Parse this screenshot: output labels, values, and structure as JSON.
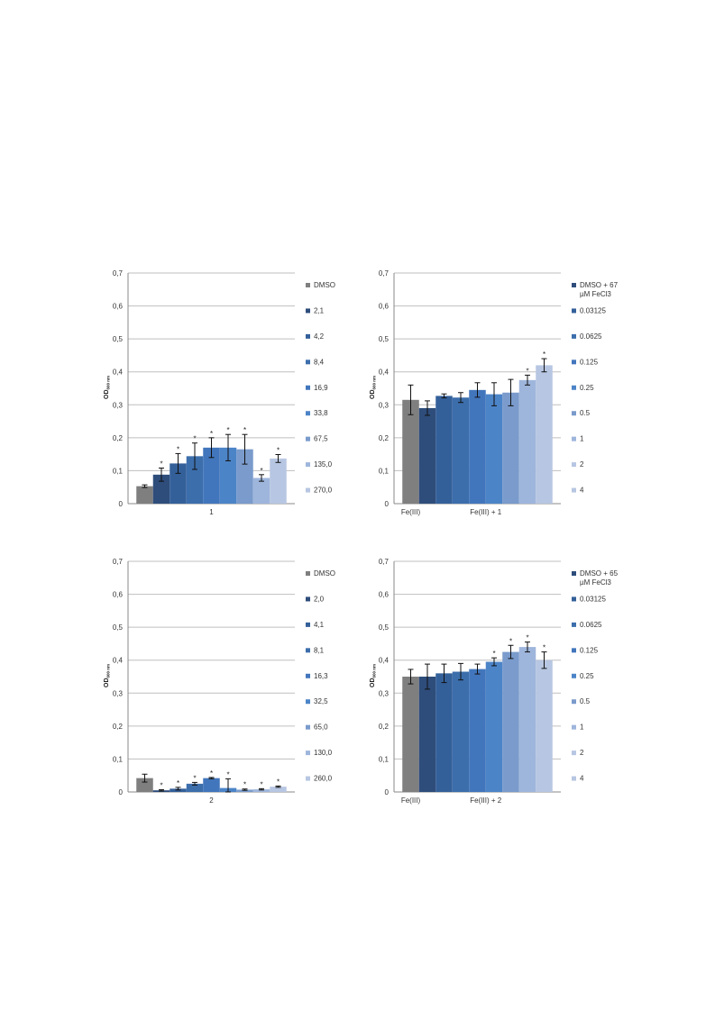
{
  "palette": [
    "#7f7f7f",
    "#2e4d7b",
    "#34609a",
    "#3c6eac",
    "#4276bc",
    "#4c84c8",
    "#7a9bcc",
    "#9fb6dc",
    "#b7c6e2"
  ],
  "chart_data": [
    {
      "type": "bar",
      "id": "p1",
      "ylabel_main": "OD",
      "ylabel_sub": "600 nm",
      "ylim": [
        0,
        0.7
      ],
      "yticks": [
        "0",
        "0,1",
        "0,2",
        "0,3",
        "0,4",
        "0,5",
        "0,6",
        "0,7"
      ],
      "grid": true,
      "legend_position": "right",
      "groups": [
        {
          "label": "1",
          "bars": [
            0,
            1,
            2,
            3,
            4,
            5,
            6,
            7,
            8
          ]
        }
      ],
      "series": [
        {
          "name": "DMSO",
          "value": 0.053,
          "error": 0.004,
          "star": false
        },
        {
          "name": "2,1",
          "value": 0.088,
          "error": 0.02,
          "star": true
        },
        {
          "name": "4,2",
          "value": 0.122,
          "error": 0.03,
          "star": true
        },
        {
          "name": "8,4",
          "value": 0.144,
          "error": 0.04,
          "star": true
        },
        {
          "name": "16,9",
          "value": 0.17,
          "error": 0.03,
          "star": true
        },
        {
          "name": "33,8",
          "value": 0.17,
          "error": 0.04,
          "star": true
        },
        {
          "name": "67,5",
          "value": 0.165,
          "error": 0.045,
          "star": true
        },
        {
          "name": "135,0",
          "value": 0.078,
          "error": 0.01,
          "star": true
        },
        {
          "name": "270,0",
          "value": 0.137,
          "error": 0.012,
          "star": true
        }
      ]
    },
    {
      "type": "bar",
      "id": "p2",
      "ylabel_main": "OD",
      "ylabel_sub": "600 nm",
      "ylim": [
        0,
        0.7
      ],
      "yticks": [
        "0",
        "0,1",
        "0,2",
        "0,3",
        "0,4",
        "0,5",
        "0,6",
        "0,7"
      ],
      "grid": true,
      "legend_position": "right",
      "groups": [
        {
          "label": "Fe(III)",
          "bars": [
            0
          ]
        },
        {
          "label": "Fe(III) + 1",
          "bars": [
            1,
            2,
            3,
            4,
            5,
            6,
            7,
            8,
            9
          ]
        }
      ],
      "series": [
        {
          "name": "",
          "value": 0.315,
          "error": 0.045,
          "star": false
        },
        {
          "name": "DMSO + 67 µM FeCl3",
          "value": 0.29,
          "error": 0.022,
          "star": false
        },
        {
          "name": "0.03125",
          "value": 0.327,
          "error": 0.006,
          "star": false
        },
        {
          "name": "0.0625",
          "value": 0.322,
          "error": 0.015,
          "star": false
        },
        {
          "name": "0.125",
          "value": 0.345,
          "error": 0.022,
          "star": false
        },
        {
          "name": "0.25",
          "value": 0.332,
          "error": 0.035,
          "star": false
        },
        {
          "name": "0.5",
          "value": 0.337,
          "error": 0.04,
          "star": false
        },
        {
          "name": "1",
          "value": 0.375,
          "error": 0.015,
          "star": true
        },
        {
          "name": "2",
          "value": 0.42,
          "error": 0.02,
          "star": true
        },
        {
          "name": "4",
          "value": null,
          "error": null,
          "star": false
        }
      ]
    },
    {
      "type": "bar",
      "id": "p3",
      "ylabel_main": "OD",
      "ylabel_sub": "600 nm",
      "ylim": [
        0,
        0.7
      ],
      "yticks": [
        "0",
        "0,1",
        "0,2",
        "0,3",
        "0,4",
        "0,5",
        "0,6",
        "0,7"
      ],
      "grid": true,
      "legend_position": "right",
      "groups": [
        {
          "label": "2",
          "bars": [
            0,
            1,
            2,
            3,
            4,
            5,
            6,
            7,
            8
          ]
        }
      ],
      "series": [
        {
          "name": "DMSO",
          "value": 0.042,
          "error": 0.012,
          "star": false
        },
        {
          "name": "2,0",
          "value": 0.005,
          "error": 0.002,
          "star": true
        },
        {
          "name": "4,1",
          "value": 0.01,
          "error": 0.004,
          "star": true
        },
        {
          "name": "8,1",
          "value": 0.025,
          "error": 0.004,
          "star": true
        },
        {
          "name": "16,3",
          "value": 0.042,
          "error": 0.002,
          "star": true
        },
        {
          "name": "32,5",
          "value": 0.012,
          "error": 0.028,
          "star": true
        },
        {
          "name": "65,0",
          "value": 0.007,
          "error": 0.002,
          "star": true
        },
        {
          "name": "130,0",
          "value": 0.008,
          "error": 0.002,
          "star": true
        },
        {
          "name": "260,0",
          "value": 0.016,
          "error": 0.002,
          "star": true
        }
      ]
    },
    {
      "type": "bar",
      "id": "p4",
      "ylabel_main": "OD",
      "ylabel_sub": "600 nm",
      "ylim": [
        0,
        0.7
      ],
      "yticks": [
        "0",
        "0,1",
        "0,2",
        "0,3",
        "0,4",
        "0,5",
        "0,6",
        "0,7"
      ],
      "grid": true,
      "legend_position": "right",
      "groups": [
        {
          "label": "Fe(III)",
          "bars": [
            0
          ]
        },
        {
          "label": "Fe(III) + 2",
          "bars": [
            1,
            2,
            3,
            4,
            5,
            6,
            7,
            8,
            9
          ]
        }
      ],
      "series": [
        {
          "name": "",
          "value": 0.35,
          "error": 0.022,
          "star": false
        },
        {
          "name": "DMSO + 65 µM FeCl3",
          "value": 0.35,
          "error": 0.038,
          "star": false
        },
        {
          "name": "0.03125",
          "value": 0.36,
          "error": 0.028,
          "star": false
        },
        {
          "name": "0.0625",
          "value": 0.365,
          "error": 0.025,
          "star": false
        },
        {
          "name": "0.125",
          "value": 0.373,
          "error": 0.015,
          "star": false
        },
        {
          "name": "0.25",
          "value": 0.395,
          "error": 0.012,
          "star": true
        },
        {
          "name": "0.5",
          "value": 0.425,
          "error": 0.02,
          "star": true
        },
        {
          "name": "1",
          "value": 0.44,
          "error": 0.015,
          "star": true
        },
        {
          "name": "2",
          "value": 0.4,
          "error": 0.025,
          "star": true
        },
        {
          "name": "4",
          "value": null,
          "error": null,
          "star": false
        }
      ]
    }
  ]
}
